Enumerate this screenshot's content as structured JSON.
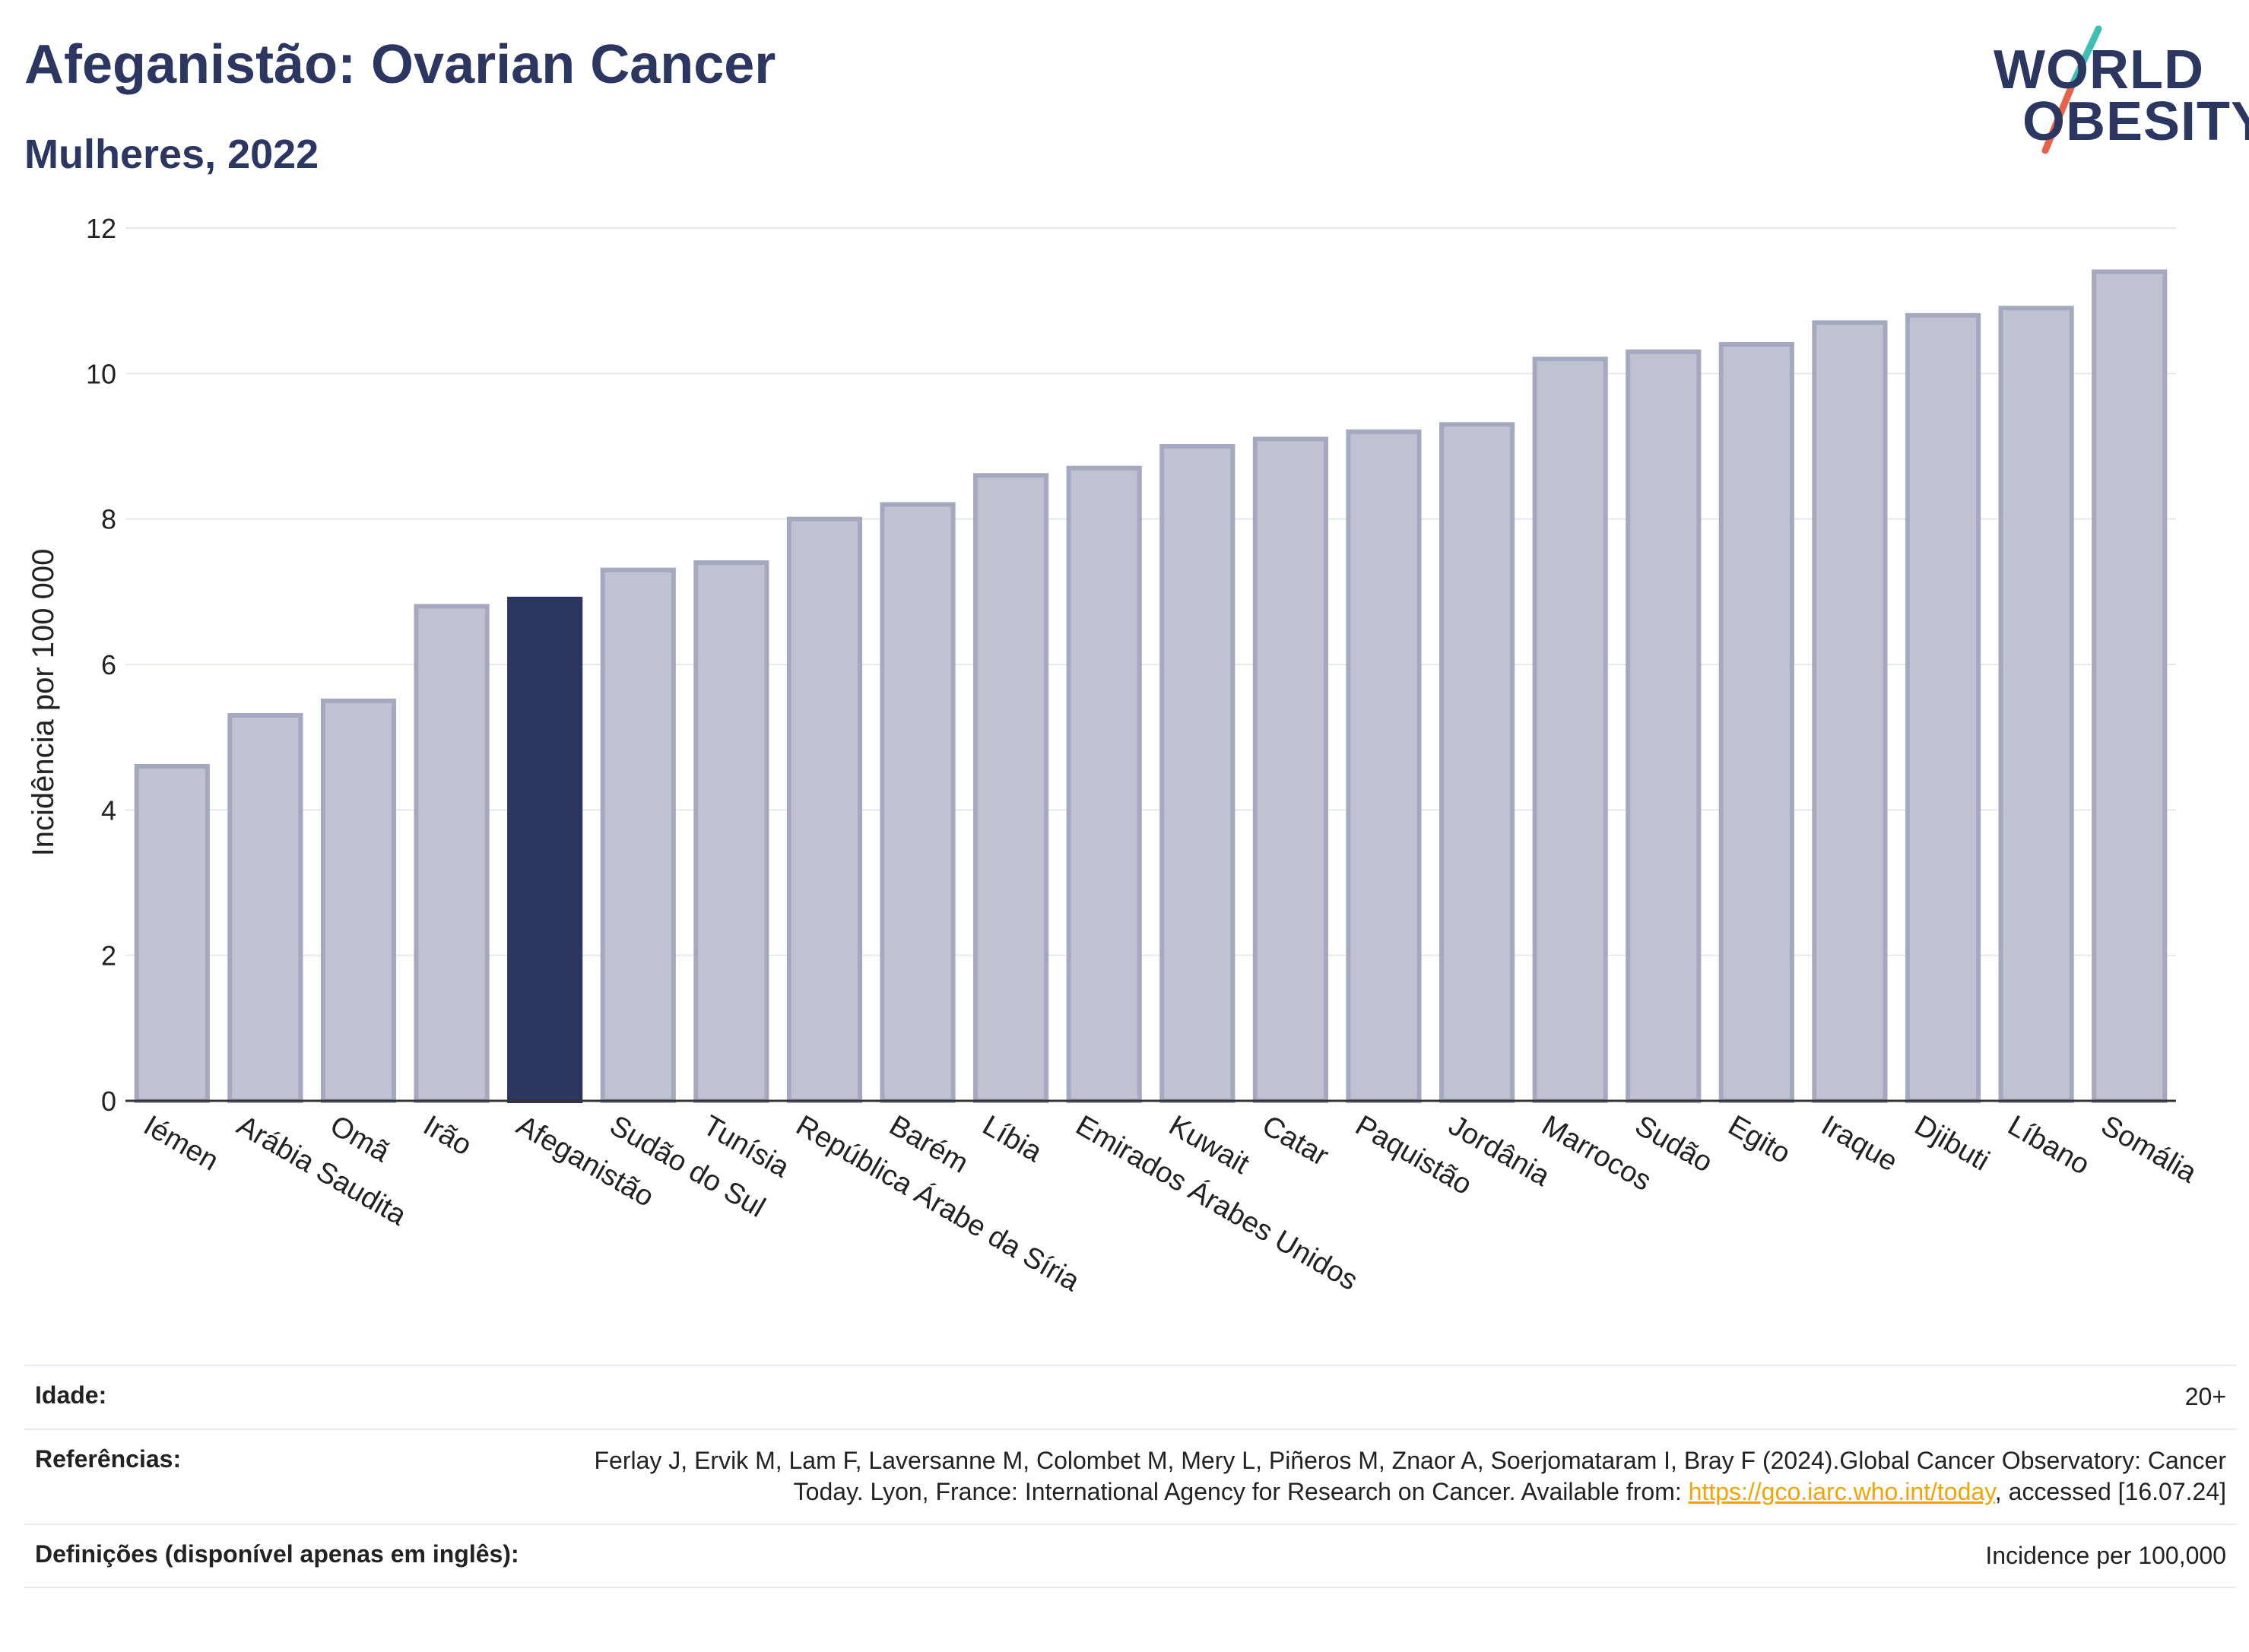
{
  "header": {
    "title": "Afeganistão: Ovarian Cancer",
    "subtitle": "Mulheres, 2022"
  },
  "logo": {
    "line1": "WORLD",
    "line2": "OBESITY",
    "colors": {
      "text": "#2b3661",
      "slash_top": "#3fbfb3",
      "slash_bottom": "#e8624a"
    }
  },
  "chart_data": {
    "type": "bar",
    "ylabel": "Incidência por 100 000",
    "ylim": [
      0,
      12
    ],
    "yticks": [
      0,
      2,
      4,
      6,
      8,
      10,
      12
    ],
    "grid": true,
    "highlight": "Afeganistão",
    "colors": {
      "bar": "#bfc3d1",
      "bar_edge": "#a4a9c0",
      "highlight": "#2b3661",
      "grid": "#e6e8ef"
    },
    "categories": [
      "Iémen",
      "Arábia Saudita",
      "Omã",
      "Irão",
      "Afeganistão",
      "Sudão do Sul",
      "Tunísia",
      "República Árabe da Síria",
      "Barém",
      "Líbia",
      "Emirados Árabes Unidos",
      "Kuwait",
      "Catar",
      "Paquistão",
      "Jordânia",
      "Marrocos",
      "Sudão",
      "Egito",
      "Iraque",
      "Djibuti",
      "Líbano",
      "Somália"
    ],
    "values": [
      4.6,
      5.3,
      5.5,
      6.8,
      6.9,
      7.3,
      7.4,
      8.0,
      8.2,
      8.6,
      8.7,
      9.0,
      9.1,
      9.2,
      9.3,
      10.2,
      10.3,
      10.4,
      10.7,
      10.8,
      10.9,
      11.4
    ]
  },
  "info": {
    "age_label": "Idade:",
    "age_value": "20+",
    "ref_label": "Referências:",
    "ref_text_before": "Ferlay J, Ervik M, Lam F, Laversanne M, Colombet M, Mery L, Piñeros M, Znaor A, Soerjomataram I, Bray F (2024).Global Cancer Observatory: Cancer Today. Lyon, France: International Agency for Research on Cancer. Available from: ",
    "ref_link": "https://gco.iarc.who.int/today",
    "ref_text_after": ", accessed [16.07.24]",
    "def_label": "Definições (disponível apenas em inglês):",
    "def_value": "Incidence per 100,000"
  }
}
